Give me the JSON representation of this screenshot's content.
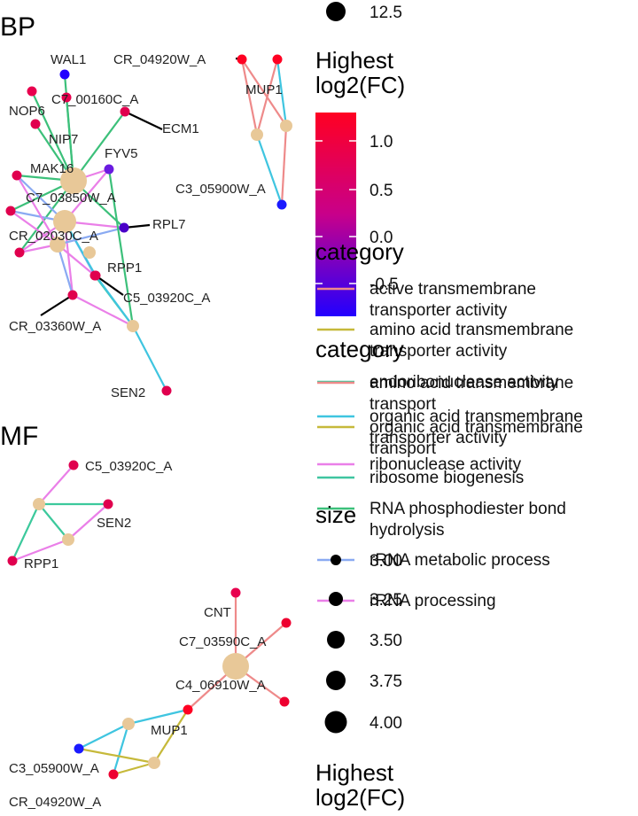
{
  "panels": [
    {
      "title": "BP",
      "nodes": [
        {
          "id": "wal1",
          "label": "WAL1",
          "kind": "gene",
          "color": "#2200ff"
        },
        {
          "id": "nop6",
          "label": "NOP6",
          "kind": "gene",
          "color": "#e8004e"
        },
        {
          "id": "c7_00160c",
          "label": "C7_00160C_A",
          "kind": "gene",
          "color": "#e8004e"
        },
        {
          "id": "ecm1",
          "label": "ECM1",
          "kind": "gene",
          "color": "#e0004e"
        },
        {
          "id": "nip7",
          "label": "NIP7",
          "kind": "gene",
          "color": "#e0004e"
        },
        {
          "id": "fyv5",
          "label": "FYV5",
          "kind": "gene",
          "color": "#6a1be0"
        },
        {
          "id": "mak16",
          "label": "MAK16",
          "kind": "gene",
          "color": "#e0004e"
        },
        {
          "id": "c7_03850w",
          "label": "C7_03850W_A",
          "kind": "gene",
          "color": "#e0004e"
        },
        {
          "id": "rpl7",
          "label": "RPL7",
          "kind": "gene",
          "color": "#4a00c8"
        },
        {
          "id": "cr_02030c",
          "label": "CR_02030C_A",
          "kind": "gene",
          "color": "#e0004e"
        },
        {
          "id": "rpp1",
          "label": "RPP1",
          "kind": "gene",
          "color": "#e0004e"
        },
        {
          "id": "c5_03920c",
          "label": "C5_03920C_A",
          "kind": "gene",
          "color": "#e0004e"
        },
        {
          "id": "cr_03360w",
          "label": "CR_03360W_A",
          "kind": "gene",
          "color": "#e0004e"
        },
        {
          "id": "sen2",
          "label": "SEN2",
          "kind": "gene",
          "color": "#e0004e"
        },
        {
          "id": "p_bp1",
          "label": "",
          "kind": "category",
          "size": 4.0
        },
        {
          "id": "p_bp2",
          "label": "",
          "kind": "category",
          "size": 3.75
        },
        {
          "id": "p_bp3",
          "label": "",
          "kind": "category",
          "size": 3.25
        },
        {
          "id": "p_bp4",
          "label": "",
          "kind": "category",
          "size": 3.0
        },
        {
          "id": "p_bp5",
          "label": "",
          "kind": "category",
          "size": 3.0
        },
        {
          "id": "cr_04920w",
          "label": "CR_04920W_A",
          "kind": "gene",
          "color": "#ff0022"
        },
        {
          "id": "mup1",
          "label": "MUP1",
          "kind": "gene",
          "color": "#ff0022"
        },
        {
          "id": "c3_05900w",
          "label": "C3_05900W_A",
          "kind": "gene",
          "color": "#1a1aff"
        },
        {
          "id": "p_bp6",
          "label": "",
          "kind": "category",
          "size": 3.0
        },
        {
          "id": "p_bp7",
          "label": "",
          "kind": "category",
          "size": 3.0
        }
      ],
      "edges": [
        {
          "from": "wal1",
          "to": "p_bp1",
          "category": "ribosome biogenesis"
        },
        {
          "from": "nop6",
          "to": "p_bp1",
          "category": "ribosome biogenesis"
        },
        {
          "from": "c7_00160c",
          "to": "p_bp1",
          "category": "ribosome biogenesis"
        },
        {
          "from": "ecm1",
          "to": "p_bp1",
          "category": "ribosome biogenesis"
        },
        {
          "from": "nip7",
          "to": "p_bp1",
          "category": "ribosome biogenesis"
        },
        {
          "from": "fyv5",
          "to": "p_bp1",
          "category": "rRNA processing"
        },
        {
          "from": "mak16",
          "to": "p_bp1",
          "category": "ribosome biogenesis"
        },
        {
          "from": "c7_03850w",
          "to": "p_bp1",
          "category": "ribosome biogenesis"
        },
        {
          "from": "rpl7",
          "to": "p_bp1",
          "category": "ribosome biogenesis"
        },
        {
          "from": "cr_02030c",
          "to": "p_bp1",
          "category": "ribosome biogenesis"
        },
        {
          "from": "fyv5",
          "to": "p_bp2",
          "category": "rRNA processing"
        },
        {
          "from": "mak16",
          "to": "p_bp2",
          "category": "rRNA metabolic process"
        },
        {
          "from": "c7_03850w",
          "to": "p_bp2",
          "category": "rRNA metabolic process"
        },
        {
          "from": "rpl7",
          "to": "p_bp2",
          "category": "rRNA processing"
        },
        {
          "from": "cr_02030c",
          "to": "p_bp2",
          "category": "rRNA processing"
        },
        {
          "from": "rpp1",
          "to": "p_bp2",
          "category": "rRNA metabolic process"
        },
        {
          "from": "c5_03920c",
          "to": "p_bp2",
          "category": "RNA phosphodiester bond hydrolysis"
        },
        {
          "from": "cr_03360w",
          "to": "p_bp2",
          "category": "rRNA processing"
        },
        {
          "from": "mak16",
          "to": "p_bp3",
          "category": "rRNA processing"
        },
        {
          "from": "c7_03850w",
          "to": "p_bp3",
          "category": "rRNA processing"
        },
        {
          "from": "rpl7",
          "to": "p_bp3",
          "category": "rRNA metabolic process"
        },
        {
          "from": "cr_02030c",
          "to": "p_bp3",
          "category": "rRNA processing"
        },
        {
          "from": "rpp1",
          "to": "p_bp3",
          "category": "rRNA processing"
        },
        {
          "from": "cr_03360w",
          "to": "p_bp3",
          "category": "rRNA metabolic process"
        },
        {
          "from": "rpp1",
          "to": "p_bp5",
          "category": "endoribonuclease activity"
        },
        {
          "from": "c5_03920c",
          "to": "p_bp5",
          "category": "organic acid transmembrane transport"
        },
        {
          "from": "sen2",
          "to": "p_bp5",
          "category": "organic acid transmembrane transport"
        },
        {
          "from": "cr_03360w",
          "to": "p_bp5",
          "category": "rRNA processing"
        },
        {
          "from": "fyv5",
          "to": "p_bp5",
          "category": "ribosome biogenesis"
        },
        {
          "from": "cr_04920w",
          "to": "p_bp6",
          "category": "amino acid transmembrane transport"
        },
        {
          "from": "mup1",
          "to": "p_bp6",
          "category": "amino acid transmembrane transport"
        },
        {
          "from": "mup1",
          "to": "p_bp7",
          "category": "organic acid transmembrane transport"
        },
        {
          "from": "cr_04920w",
          "to": "p_bp7",
          "category": "amino acid transmembrane transport"
        },
        {
          "from": "p_bp7",
          "to": "c3_05900w",
          "category": "amino acid transmembrane transport"
        },
        {
          "from": "p_bp6",
          "to": "c3_05900w",
          "category": "organic acid transmembrane transport"
        }
      ]
    },
    {
      "title": "MF",
      "nodes": [
        {
          "id": "c5_03920c",
          "label": "C5_03920C_A",
          "kind": "gene",
          "color": "#e0004e"
        },
        {
          "id": "sen2",
          "label": "SEN2",
          "kind": "gene",
          "color": "#e0004e"
        },
        {
          "id": "rpp1",
          "label": "RPP1",
          "kind": "gene",
          "color": "#e0004e"
        },
        {
          "id": "p_mf1",
          "label": "",
          "kind": "category",
          "size": 3.0
        },
        {
          "id": "p_mf2",
          "label": "",
          "kind": "category",
          "size": 3.0
        },
        {
          "id": "cnt",
          "label": "CNT",
          "kind": "gene",
          "color": "#e8004e"
        },
        {
          "id": "c7_03590c",
          "label": "C7_03590C_A",
          "kind": "gene",
          "color": "#ee0030"
        },
        {
          "id": "c4_06910w",
          "label": "C4_06910W_A",
          "kind": "gene",
          "color": "#ee0030"
        },
        {
          "id": "mup1",
          "label": "MUP1",
          "kind": "gene",
          "color": "#ff0022"
        },
        {
          "id": "c3_05900w",
          "label": "C3_05900W_A",
          "kind": "gene",
          "color": "#1a1aff"
        },
        {
          "id": "cr_04920w",
          "label": "CR_04920W_A",
          "kind": "gene",
          "color": "#ee0030"
        },
        {
          "id": "p_mf3",
          "label": "",
          "kind": "category",
          "size": 4.0
        },
        {
          "id": "p_mf4",
          "label": "",
          "kind": "category",
          "size": 3.0
        },
        {
          "id": "p_mf5",
          "label": "",
          "kind": "category",
          "size": 3.0
        }
      ],
      "edges": [
        {
          "from": "c5_03920c",
          "to": "p_mf1",
          "category": "ribonuclease activity"
        },
        {
          "from": "p_mf1",
          "to": "p_mf2",
          "category": "endoribonuclease activity"
        },
        {
          "from": "p_mf1",
          "to": "rpp1",
          "category": "endoribonuclease activity"
        },
        {
          "from": "p_mf2",
          "to": "sen2",
          "category": "ribonuclease activity"
        },
        {
          "from": "p_mf2",
          "to": "rpp1",
          "category": "ribonuclease activity"
        },
        {
          "from": "p_mf1",
          "to": "sen2",
          "category": "endoribonuclease activity"
        },
        {
          "from": "cnt",
          "to": "p_mf3",
          "category": "active transmembrane transporter activity"
        },
        {
          "from": "c7_03590c",
          "to": "p_mf3",
          "category": "active transmembrane transporter activity"
        },
        {
          "from": "c4_06910w",
          "to": "p_mf3",
          "category": "active transmembrane transporter activity"
        },
        {
          "from": "mup1",
          "to": "p_mf3",
          "category": "active transmembrane transporter activity"
        },
        {
          "from": "mup1",
          "to": "p_mf4",
          "category": "organic acid transmembrane transporter activity"
        },
        {
          "from": "c3_05900w",
          "to": "p_mf4",
          "category": "organic acid transmembrane transporter activity"
        },
        {
          "from": "cr_04920w",
          "to": "p_mf4",
          "category": "organic acid transmembrane transporter activity"
        },
        {
          "from": "mup1",
          "to": "p_mf5",
          "category": "amino acid transmembrane transporter activity"
        },
        {
          "from": "c3_05900w",
          "to": "p_mf5",
          "category": "amino acid transmembrane transporter activity"
        },
        {
          "from": "cr_04920w",
          "to": "p_mf5",
          "category": "amino acid transmembrane transporter activity"
        }
      ]
    }
  ],
  "legends": {
    "top_size_label": "12.5",
    "color_title_top": [
      "Highest",
      "log2(FC)"
    ],
    "color_ticks": [
      "1.0",
      "0.5",
      "0.0",
      "-0.5"
    ],
    "color_high": "#ff0022",
    "color_mid": "#c8008a",
    "color_low": "#2200ff",
    "category_title": "category",
    "category_items_mf": [
      {
        "label": [
          "active transmembrane",
          "transporter activity"
        ],
        "color": "#ee8a8a"
      },
      {
        "label": [
          "amino acid transmembrane",
          "transporter activity"
        ],
        "color": "#c6b93a"
      },
      {
        "label": [
          "endoribonuclease activity"
        ],
        "color": "#3cc99c"
      },
      {
        "label": [
          "organic acid transmembrane",
          "transporter activity"
        ],
        "color": "#3fc5e0"
      },
      {
        "label": [
          "ribonuclease activity"
        ],
        "color": "#ea7fe8"
      }
    ],
    "category_items_bp": [
      {
        "label": [
          "amino acid transmembrane",
          "transport"
        ],
        "color": "#ee8a8a"
      },
      {
        "label": [
          "organic acid transmembrane",
          "transport"
        ],
        "color": "#c6b93a"
      },
      {
        "label": [
          "ribosome biogenesis"
        ],
        "color": "#3fc5a0"
      },
      {
        "label": [
          "RNA phosphodiester bond",
          "hydrolysis"
        ],
        "color": "#3cc07a"
      },
      {
        "label": [
          "rRNA metabolic process"
        ],
        "color": "#8aaaf2"
      },
      {
        "label": [
          "rRNA processing"
        ],
        "color": "#ea7fe8"
      }
    ],
    "size_title": "size",
    "size_items": [
      "3.00",
      "3.25",
      "3.50",
      "3.75",
      "4.00"
    ],
    "bottom_title": [
      "Highest",
      "log2(FC)"
    ]
  },
  "edge_colors": {
    "ribosome biogenesis": "#3cc07a",
    "rRNA processing": "#ea7fe8",
    "rRNA metabolic process": "#8aaaf2",
    "RNA phosphodiester bond hydrolysis": "#3fc5e0",
    "endoribonuclease activity": "#3cc99c",
    "organic acid transmembrane transport": "#3fc5e0",
    "amino acid transmembrane transport": "#ee8a8a",
    "ribonuclease activity": "#ea7fe8",
    "active transmembrane transporter activity": "#ee8a8a",
    "organic acid transmembrane transporter activity": "#3fc5e0",
    "amino acid transmembrane transporter activity": "#c6b93a"
  },
  "category_node_color": "#e8c898"
}
